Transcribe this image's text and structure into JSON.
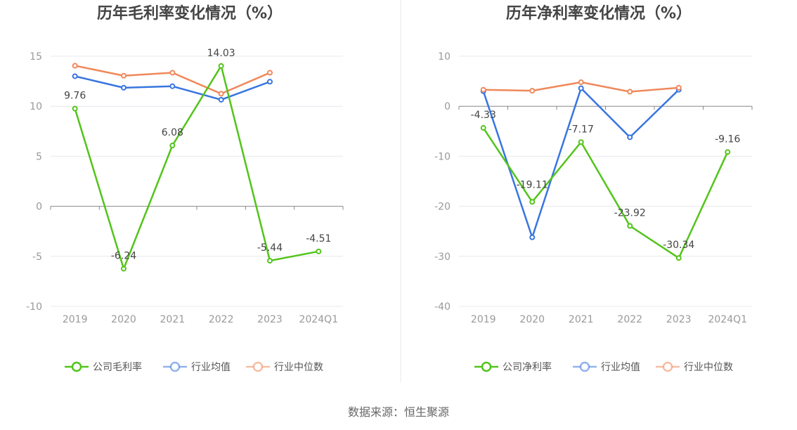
{
  "source_text": "数据来源：恒生聚源",
  "colors": {
    "company": "#52c41a",
    "average": "#3875e0",
    "median": "#f0885a",
    "grid": "#e6e8ee",
    "axis": "#888888",
    "divider": "#e8e8e8"
  },
  "chart_data": [
    {
      "type": "line",
      "title": "历年毛利率变化情况（%）",
      "categories": [
        "2019",
        "2020",
        "2021",
        "2022",
        "2023",
        "2024Q1"
      ],
      "ylim": [
        -10,
        15
      ],
      "yticks": [
        15,
        10,
        5,
        0,
        -5,
        -10
      ],
      "grid": true,
      "legend_position": "bottom",
      "series": [
        {
          "name": "公司毛利率",
          "key": "company",
          "values": [
            9.76,
            -6.24,
            6.08,
            14.03,
            -5.44,
            -4.51
          ],
          "labels": [
            "9.76",
            "-6.24",
            "6.08",
            "14.03",
            "-5.44",
            "-4.51"
          ]
        },
        {
          "name": "行业均值",
          "key": "average",
          "values": [
            13.0,
            11.85,
            12.0,
            10.65,
            12.45,
            null
          ]
        },
        {
          "name": "行业中位数",
          "key": "median",
          "values": [
            14.05,
            13.05,
            13.35,
            11.25,
            13.35,
            null
          ]
        }
      ]
    },
    {
      "type": "line",
      "title": "历年净利率变化情况（%）",
      "categories": [
        "2019",
        "2020",
        "2021",
        "2022",
        "2023",
        "2024Q1"
      ],
      "ylim": [
        -40,
        10
      ],
      "yticks": [
        10,
        0,
        -10,
        -20,
        -30,
        -40
      ],
      "grid": true,
      "legend_position": "bottom",
      "series": [
        {
          "name": "公司净利率",
          "key": "company",
          "values": [
            -4.33,
            -19.11,
            -7.17,
            -23.92,
            -30.34,
            -9.16
          ],
          "labels": [
            "-4.33",
            "-19.11",
            "-7.17",
            "-23.92",
            "-30.34",
            "-9.16"
          ]
        },
        {
          "name": "行业均值",
          "key": "average",
          "values": [
            3.0,
            -26.2,
            3.6,
            -6.2,
            3.3,
            null
          ]
        },
        {
          "name": "行业中位数",
          "key": "median",
          "values": [
            3.3,
            3.1,
            4.8,
            2.9,
            3.7,
            null
          ]
        }
      ]
    }
  ]
}
